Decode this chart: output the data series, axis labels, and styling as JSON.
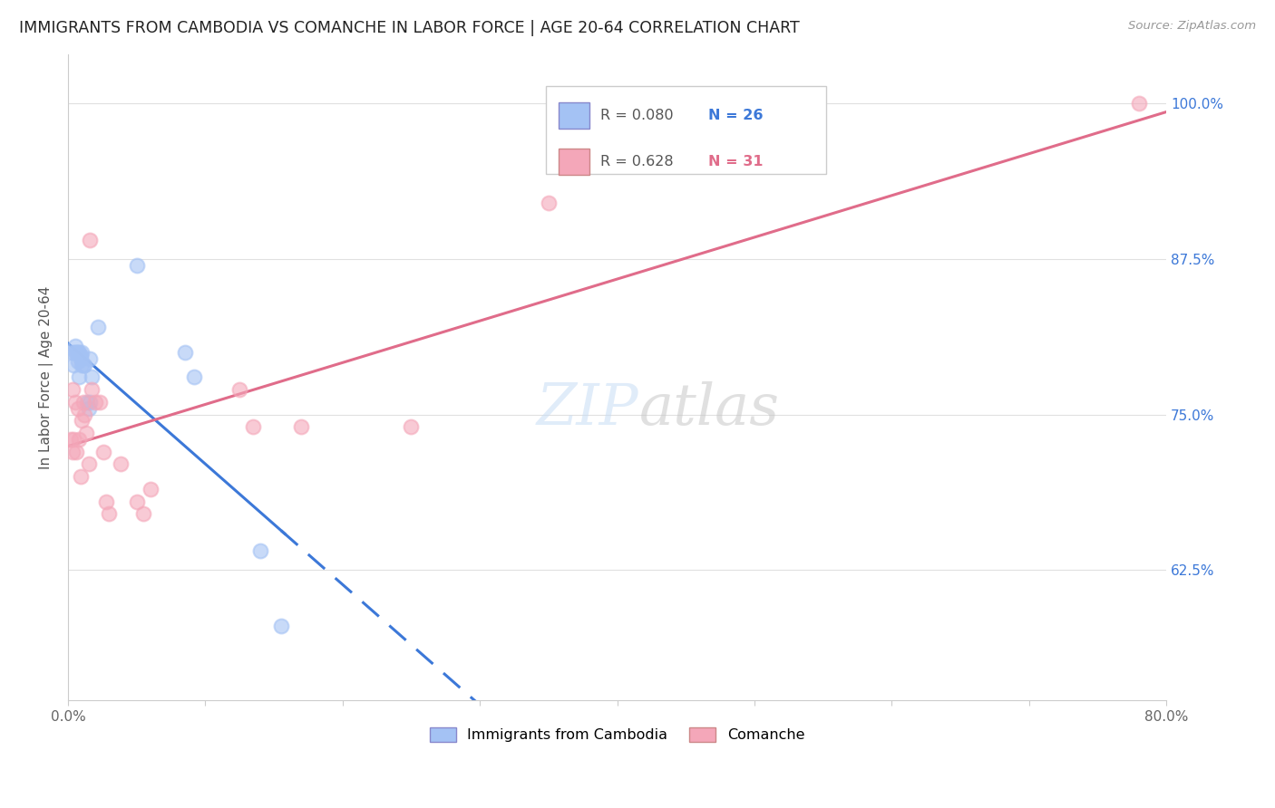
{
  "title": "IMMIGRANTS FROM CAMBODIA VS COMANCHE IN LABOR FORCE | AGE 20-64 CORRELATION CHART",
  "source": "Source: ZipAtlas.com",
  "ylabel": "In Labor Force | Age 20-64",
  "xlim": [
    0.0,
    0.8
  ],
  "ylim": [
    0.52,
    1.04
  ],
  "x_ticks": [
    0.0,
    0.1,
    0.2,
    0.3,
    0.4,
    0.5,
    0.6,
    0.7,
    0.8
  ],
  "y_ticks": [
    0.625,
    0.75,
    0.875,
    1.0
  ],
  "y_tick_labels": [
    "62.5%",
    "75.0%",
    "87.5%",
    "100.0%"
  ],
  "legend_labels": [
    "Immigrants from Cambodia",
    "Comanche"
  ],
  "r_blue": 0.08,
  "n_blue": 26,
  "r_pink": 0.628,
  "n_pink": 31,
  "blue_color": "#a4c2f4",
  "pink_color": "#f4a7b9",
  "blue_line_color": "#3c78d8",
  "pink_line_color": "#e06c8a",
  "background_color": "#ffffff",
  "grid_color": "#e0e0e0",
  "blue_points_x": [
    0.003,
    0.004,
    0.005,
    0.005,
    0.006,
    0.007,
    0.007,
    0.008,
    0.008,
    0.009,
    0.009,
    0.01,
    0.01,
    0.011,
    0.012,
    0.014,
    0.015,
    0.016,
    0.016,
    0.017,
    0.022,
    0.05,
    0.085,
    0.092,
    0.14,
    0.155
  ],
  "blue_points_y": [
    0.8,
    0.79,
    0.805,
    0.8,
    0.8,
    0.8,
    0.793,
    0.8,
    0.78,
    0.798,
    0.795,
    0.8,
    0.79,
    0.79,
    0.79,
    0.76,
    0.755,
    0.795,
    0.76,
    0.78,
    0.82,
    0.87,
    0.8,
    0.78,
    0.64,
    0.58
  ],
  "pink_points_x": [
    0.002,
    0.003,
    0.003,
    0.004,
    0.005,
    0.006,
    0.007,
    0.008,
    0.009,
    0.01,
    0.011,
    0.012,
    0.013,
    0.015,
    0.016,
    0.017,
    0.02,
    0.023,
    0.026,
    0.028,
    0.03,
    0.038,
    0.05,
    0.055,
    0.06,
    0.125,
    0.135,
    0.17,
    0.25,
    0.35,
    0.78
  ],
  "pink_points_y": [
    0.73,
    0.77,
    0.72,
    0.73,
    0.76,
    0.72,
    0.755,
    0.73,
    0.7,
    0.745,
    0.76,
    0.75,
    0.735,
    0.71,
    0.89,
    0.77,
    0.76,
    0.76,
    0.72,
    0.68,
    0.67,
    0.71,
    0.68,
    0.67,
    0.69,
    0.77,
    0.74,
    0.74,
    0.74,
    0.92,
    1.0
  ]
}
